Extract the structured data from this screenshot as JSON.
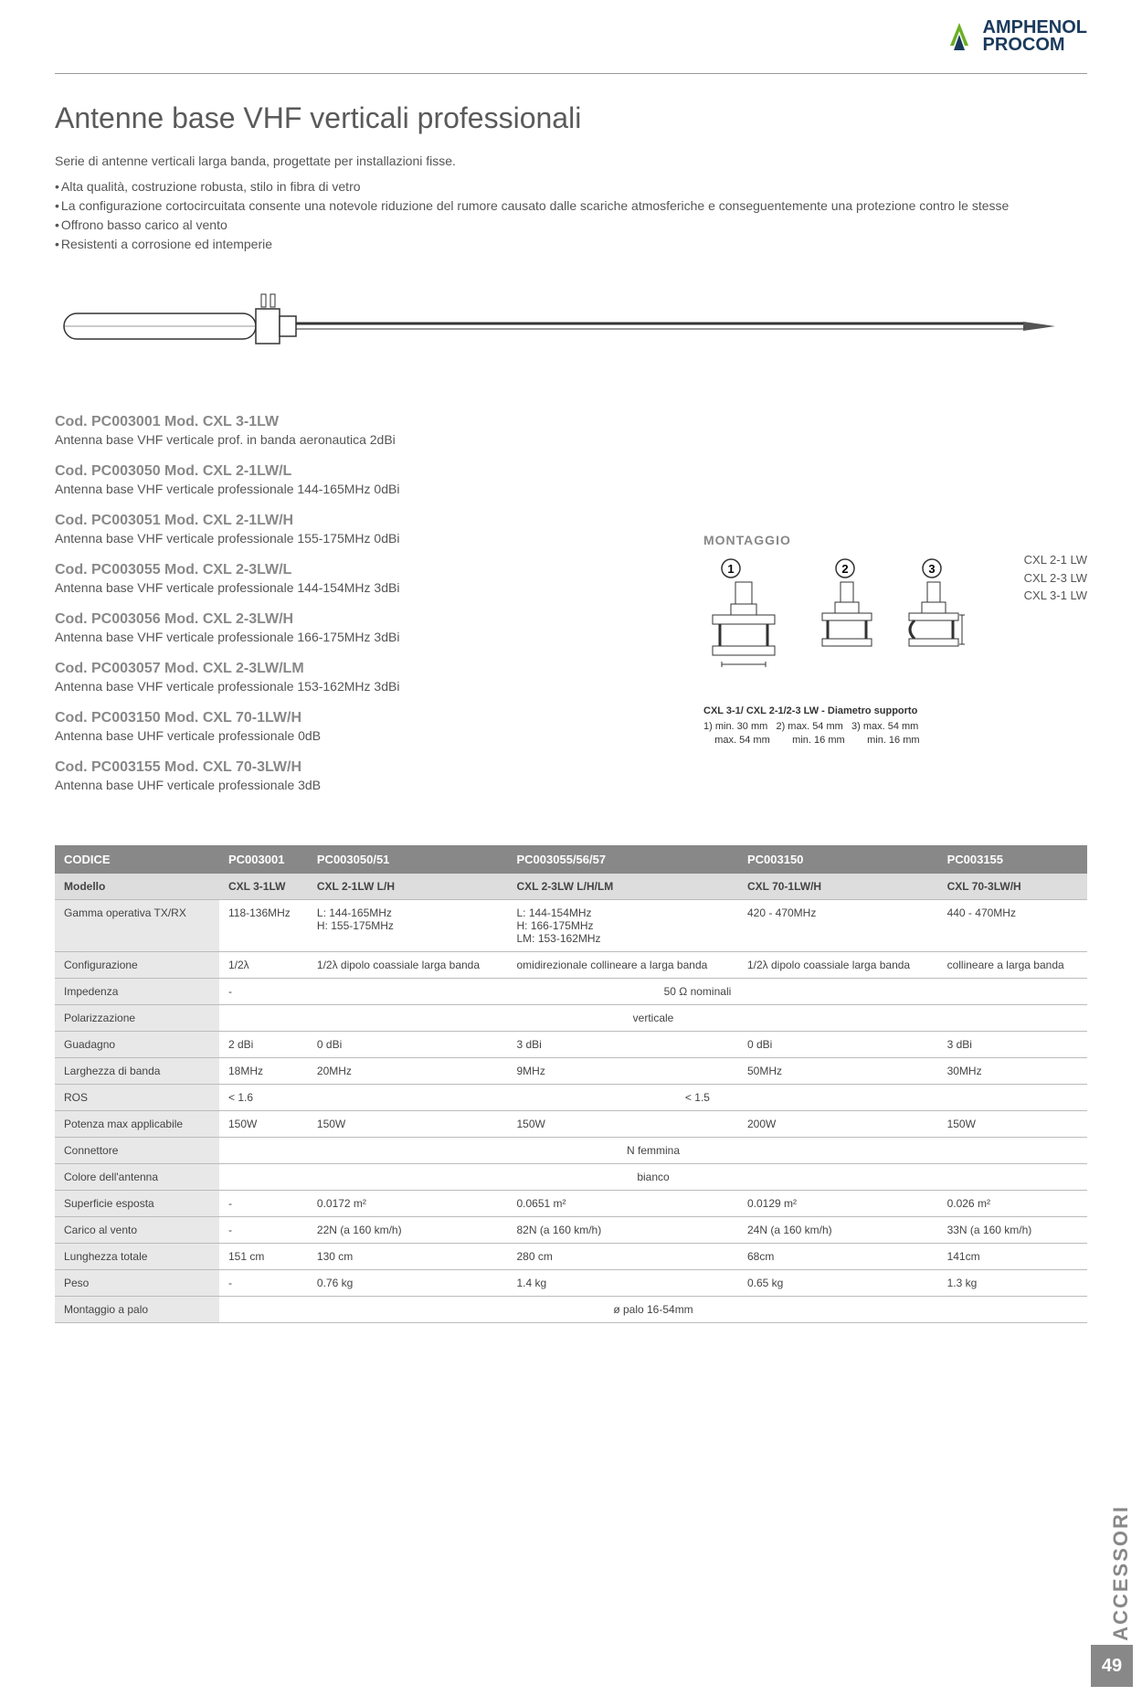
{
  "logo": {
    "brand1": "AMPHENOL",
    "brand2": "PROCOM"
  },
  "title": "Antenne base VHF verticali professionali",
  "intro": "Serie di antenne verticali larga banda, progettate per installazioni fisse.",
  "bullets": [
    "Alta qualità, costruzione robusta, stilo in fibra di vetro",
    "La configurazione cortocircuitata consente una notevole riduzione del rumore causato dalle scariche atmosferiche e conseguentemente una protezione contro le stesse",
    "Offrono basso carico al vento",
    "Resistenti a corrosione ed intemperie"
  ],
  "products": [
    {
      "code": "Cod. PC003001 Mod. CXL 3-1LW",
      "desc": "Antenna base VHF verticale prof. in banda aeronautica 2dBi"
    },
    {
      "code": "Cod. PC003050 Mod. CXL 2-1LW/L",
      "desc": "Antenna base VHF verticale professionale 144-165MHz 0dBi"
    },
    {
      "code": "Cod. PC003051 Mod. CXL 2-1LW/H",
      "desc": "Antenna base VHF verticale professionale 155-175MHz 0dBi"
    },
    {
      "code": "Cod. PC003055 Mod. CXL 2-3LW/L",
      "desc": "Antenna base VHF verticale professionale 144-154MHz 3dBi"
    },
    {
      "code": "Cod. PC003056 Mod. CXL 2-3LW/H",
      "desc": "Antenna base VHF verticale professionale 166-175MHz 3dBi"
    },
    {
      "code": "Cod. PC003057 Mod. CXL 2-3LW/LM",
      "desc": "Antenna base VHF verticale professionale 153-162MHz 3dBi"
    },
    {
      "code": "Cod. PC003150 Mod. CXL 70-1LW/H",
      "desc": "Antenna base UHF verticale professionale 0dB"
    },
    {
      "code": "Cod. PC003155 Mod. CXL 70-3LW/H",
      "desc": "Antenna base UHF verticale professionale 3dB"
    }
  ],
  "mounting": {
    "title": "MONTAGGIO",
    "labels": [
      "CXL 2-1 LW",
      "CXL 2-3 LW",
      "CXL 3-1 LW"
    ],
    "caption": "CXL 3-1/ CXL 2-1/2-3 LW - Diametro supporto",
    "dims": "1) min. 30 mm   2) max. 54 mm   3) max. 54 mm\n    max. 54 mm        min. 16 mm        min. 16 mm"
  },
  "table": {
    "header": [
      "CODICE",
      "PC003001",
      "PC003050/51",
      "PC003055/56/57",
      "PC003150",
      "PC003155"
    ],
    "rows": [
      {
        "label": "Modello",
        "cells": [
          "CXL 3-1LW",
          "CXL 2-1LW  L/H",
          "CXL 2-3LW  L/H/LM",
          "CXL 70-1LW/H",
          "CXL 70-3LW/H"
        ]
      },
      {
        "label": "Gamma operativa TX/RX",
        "cells": [
          "118-136MHz",
          "L: 144-165MHz\n H: 155-175MHz",
          "L: 144-154MHz\nH: 166-175MHz\nLM: 153-162MHz",
          "420 - 470MHz",
          "440 - 470MHz"
        ]
      },
      {
        "label": "Configurazione",
        "cells": [
          "1/2λ",
          "1/2λ dipolo coassiale larga banda",
          "omidirezionale collineare a larga banda",
          "1/2λ dipolo coassiale larga banda",
          "collineare a larga banda"
        ]
      },
      {
        "label": "Impedenza",
        "cells": [
          "-"
        ],
        "span": "50 Ω nominali"
      },
      {
        "label": "Polarizzazione",
        "span_full": "verticale"
      },
      {
        "label": "Guadagno",
        "cells": [
          "2 dBi",
          "0 dBi",
          "3 dBi",
          "0 dBi",
          "3 dBi"
        ]
      },
      {
        "label": "Larghezza di banda",
        "cells": [
          "18MHz",
          "20MHz",
          "9MHz",
          "50MHz",
          "30MHz"
        ]
      },
      {
        "label": "ROS",
        "cells": [
          "< 1.6"
        ],
        "span": "< 1.5"
      },
      {
        "label": "Potenza max applicabile",
        "cells": [
          "150W",
          "150W",
          "150W",
          "200W",
          "150W"
        ]
      },
      {
        "label": "Connettore",
        "span_full": "N femmina"
      },
      {
        "label": "Colore dell'antenna",
        "span_full": "bianco"
      },
      {
        "label": "Superficie esposta",
        "cells": [
          "-",
          "0.0172 m²",
          "0.0651 m²",
          "0.0129 m²",
          "0.026 m²"
        ]
      },
      {
        "label": "Carico al vento",
        "cells": [
          "-",
          "22N (a 160 km/h)",
          "82N (a 160 km/h)",
          "24N (a 160 km/h)",
          "33N (a 160 km/h)"
        ]
      },
      {
        "label": "Lunghezza totale",
        "cells": [
          "151 cm",
          "130 cm",
          "280 cm",
          "68cm",
          "141cm"
        ]
      },
      {
        "label": "Peso",
        "cells": [
          "-",
          "0.76 kg",
          "1.4 kg",
          "0.65 kg",
          "1.3 kg"
        ]
      },
      {
        "label": "Montaggio a palo",
        "span_full": "ø palo 16-54mm"
      }
    ]
  },
  "side_tab": "ACCESSORI",
  "page_number": "49",
  "colors": {
    "heading": "#5a5a5a",
    "code": "#888888",
    "text": "#4a4a4a",
    "table_header_bg": "#888888",
    "row_label_bg": "#e8e8e8",
    "logo_green": "#6ab023",
    "logo_blue": "#1a3a5c"
  }
}
